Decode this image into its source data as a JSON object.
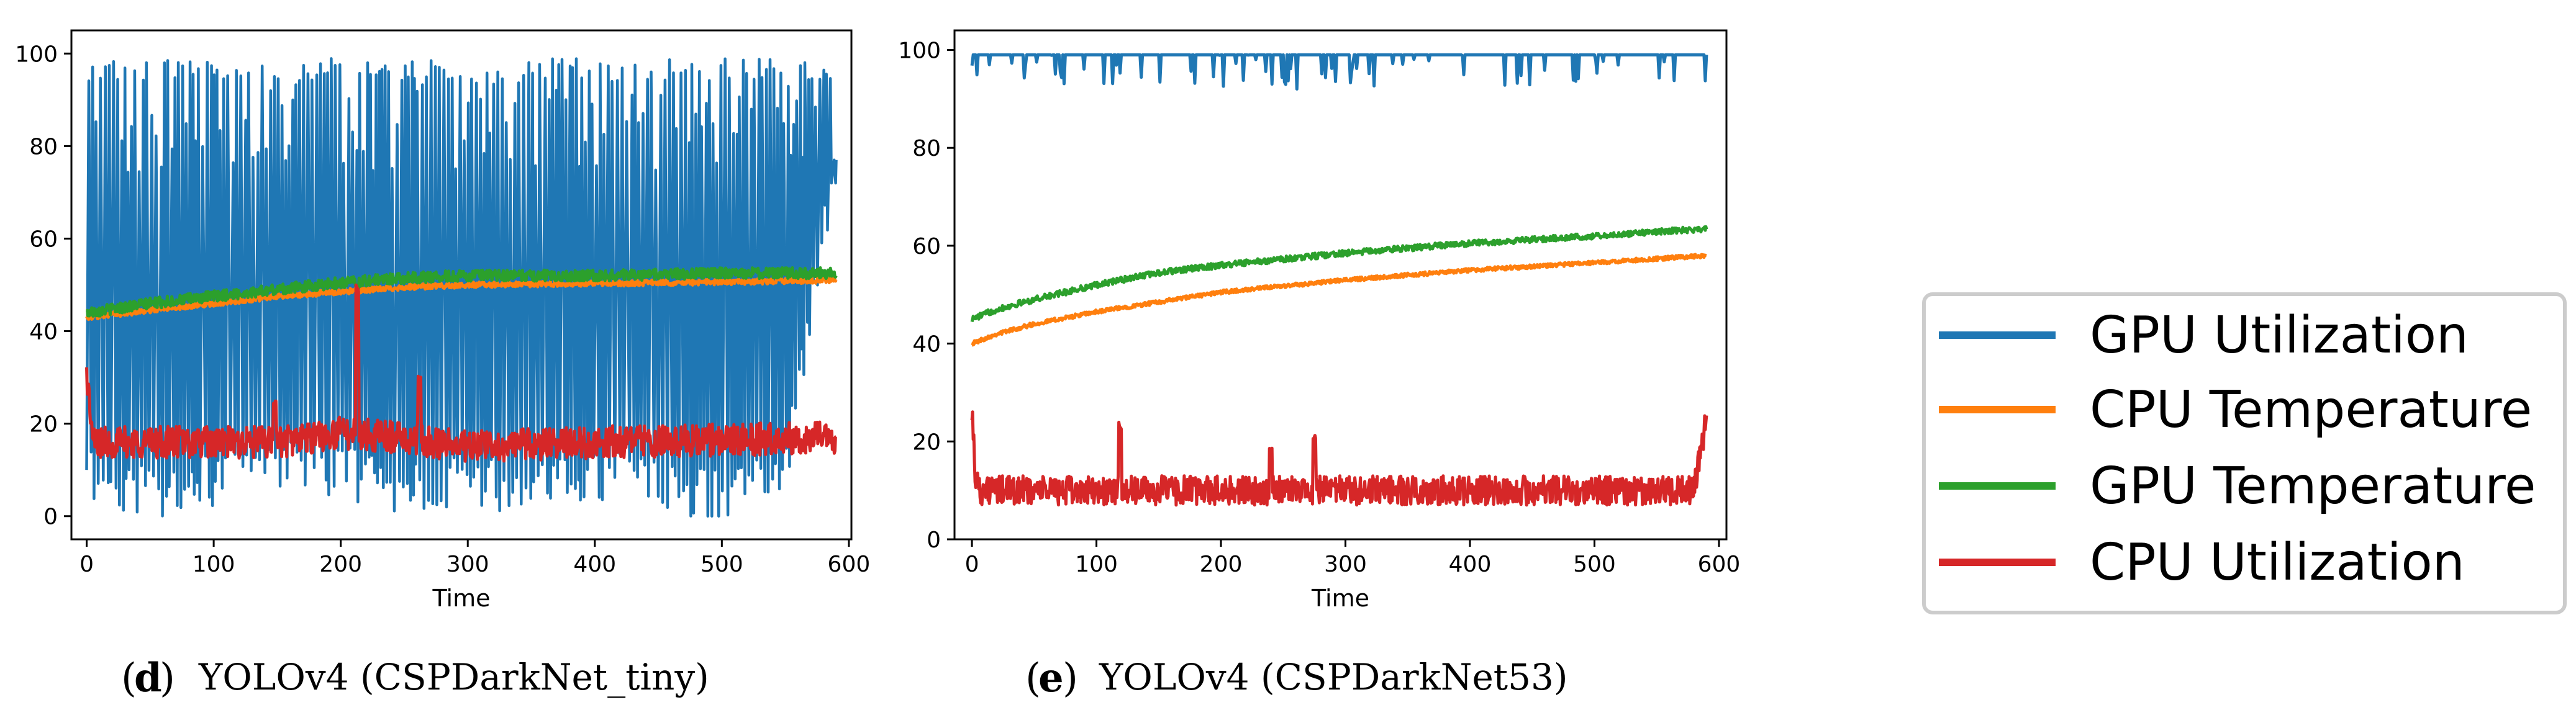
{
  "chart_data": [
    {
      "type": "line",
      "panel_label": "d",
      "caption": "YOLOv4 (CSPDarkNet_tiny)",
      "xlabel": "Time",
      "ylabel": "",
      "xlim": [
        -12,
        602
      ],
      "ylim": [
        -5,
        105
      ],
      "xticks": [
        0,
        100,
        200,
        300,
        400,
        500,
        600
      ],
      "yticks": [
        0,
        20,
        40,
        60,
        80,
        100
      ],
      "x_extent": [
        0,
        590
      ],
      "series": [
        {
          "name": "GPU Utilization",
          "pattern": "oscillating",
          "low": 0,
          "high": 99,
          "anchor_x": [
            0,
            50,
            100,
            150,
            200,
            250,
            300,
            350,
            400,
            450,
            500,
            550,
            590
          ],
          "anchor_y": [
            10,
            5,
            8,
            12,
            10,
            5,
            8,
            6,
            9,
            7,
            5,
            10,
            76
          ]
        },
        {
          "name": "CPU Temperature",
          "pattern": "trend",
          "noise": 0.6,
          "anchor_x": [
            0,
            50,
            100,
            150,
            200,
            250,
            300,
            400,
            500,
            590
          ],
          "anchor_y": [
            43,
            44.5,
            46,
            47.5,
            48.5,
            49.5,
            50,
            50.3,
            50.6,
            51
          ]
        },
        {
          "name": "GPU Temperature",
          "pattern": "trend",
          "noise": 1.2,
          "anchor_x": [
            0,
            50,
            100,
            150,
            200,
            250,
            300,
            400,
            500,
            590
          ],
          "anchor_y": [
            44,
            46,
            47.5,
            49,
            50.5,
            51.5,
            52,
            52,
            52.5,
            52.5
          ],
          "spikes": [
            {
              "x": 213,
              "y": 50
            }
          ]
        },
        {
          "name": "CPU Utilization",
          "pattern": "noisy",
          "noise": 3.5,
          "anchor_x": [
            0,
            5,
            50,
            100,
            150,
            200,
            250,
            300,
            400,
            500,
            590
          ],
          "anchor_y": [
            31,
            16,
            16,
            16,
            16,
            18,
            17,
            15,
            16,
            16.5,
            17
          ],
          "spikes": [
            {
              "x": 213,
              "y": 50
            },
            {
              "x": 262,
              "y": 31
            },
            {
              "x": 148,
              "y": 25
            }
          ]
        }
      ]
    },
    {
      "type": "line",
      "panel_label": "e",
      "caption": "YOLOv4 (CSPDarkNet53)",
      "xlabel": "Time",
      "ylabel": "",
      "xlim": [
        -14,
        606
      ],
      "ylim": [
        0,
        104
      ],
      "xticks": [
        0,
        100,
        200,
        300,
        400,
        500,
        600
      ],
      "yticks": [
        0,
        20,
        40,
        60,
        80,
        100
      ],
      "x_extent": [
        0,
        590
      ],
      "series": [
        {
          "name": "GPU Utilization",
          "pattern": "flat_with_dips",
          "level": 99,
          "dip_min": 92
        },
        {
          "name": "CPU Temperature",
          "pattern": "trend",
          "noise": 0.4,
          "anchor_x": [
            0,
            20,
            50,
            100,
            150,
            200,
            300,
            400,
            500,
            590
          ],
          "anchor_y": [
            40,
            42,
            44,
            46.5,
            48.5,
            50.5,
            53,
            55,
            56.5,
            58
          ]
        },
        {
          "name": "GPU Temperature",
          "pattern": "trend",
          "noise": 0.6,
          "anchor_x": [
            0,
            20,
            50,
            100,
            150,
            200,
            300,
            400,
            500,
            590
          ],
          "anchor_y": [
            45,
            47,
            49,
            52,
            54.5,
            56,
            58.5,
            60.5,
            62,
            63.5
          ]
        },
        {
          "name": "CPU Utilization",
          "pattern": "noisy",
          "noise": 3.0,
          "anchor_x": [
            0,
            3,
            8,
            50,
            100,
            200,
            300,
            400,
            500,
            580,
            590
          ],
          "anchor_y": [
            27,
            12,
            10,
            10,
            10,
            10,
            10,
            10,
            10,
            10,
            25
          ],
          "spikes": [
            {
              "x": 119,
              "y": 24
            },
            {
              "x": 240,
              "y": 19
            },
            {
              "x": 275,
              "y": 22
            }
          ]
        }
      ]
    }
  ],
  "legend": {
    "items": [
      {
        "label": "GPU Utilization",
        "color": "#1f77b4"
      },
      {
        "label": "CPU Temperature",
        "color": "#ff7f0e"
      },
      {
        "label": "GPU Temperature",
        "color": "#2ca02c"
      },
      {
        "label": "CPU Utilization",
        "color": "#d62728"
      }
    ]
  },
  "captions": [
    {
      "letter": "d",
      "text": "YOLOv4 (CSPDarkNet_tiny)"
    },
    {
      "letter": "e",
      "text": "YOLOv4 (CSPDarkNet53)"
    }
  ],
  "colors": {
    "GPU Utilization": "#1f77b4",
    "CPU Temperature": "#ff7f0e",
    "GPU Temperature": "#2ca02c",
    "CPU Utilization": "#d62728"
  }
}
